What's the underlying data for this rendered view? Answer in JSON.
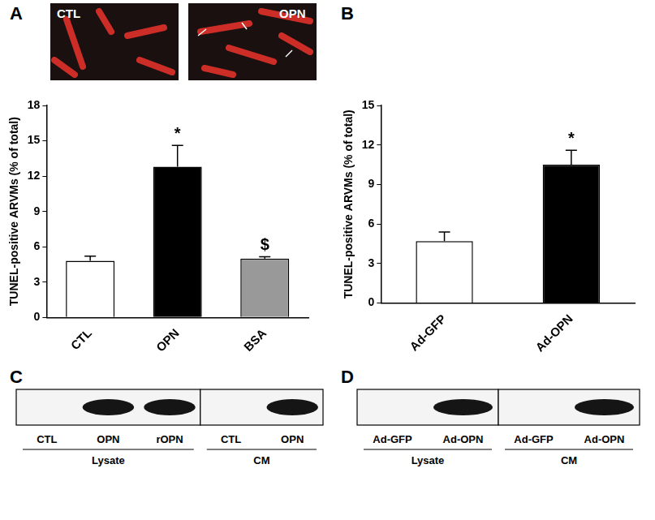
{
  "chart_data": [
    {
      "panel": "A",
      "type": "bar",
      "categories": [
        "CTL",
        "OPN",
        "BSA"
      ],
      "values": [
        4.8,
        12.8,
        5.0
      ],
      "errors": [
        0.4,
        1.8,
        0.15
      ],
      "colors": [
        "#ffffff",
        "#000000",
        "#999999"
      ],
      "y_label": "TUNEL-positive ARVMs (% of total)",
      "ylim": [
        0,
        18
      ],
      "yticks": [
        0,
        3,
        6,
        9,
        12,
        15,
        18
      ],
      "grid": false,
      "annotations": [
        {
          "category": "OPN",
          "text": "*"
        },
        {
          "category": "BSA",
          "text": "$"
        }
      ]
    },
    {
      "panel": "B",
      "type": "bar",
      "categories": [
        "Ad-GFP",
        "Ad-OPN"
      ],
      "values": [
        4.7,
        10.5
      ],
      "errors": [
        0.7,
        1.1
      ],
      "colors": [
        "#ffffff",
        "#000000"
      ],
      "y_label": "TUNEL-positive ARVMs (% of total)",
      "ylim": [
        0,
        15
      ],
      "yticks": [
        0,
        3,
        6,
        9,
        12,
        15
      ],
      "grid": false,
      "annotations": [
        {
          "category": "Ad-OPN",
          "text": "*"
        }
      ]
    }
  ],
  "images": {
    "panel": "A",
    "items": [
      {
        "label": "CTL"
      },
      {
        "label": "OPN"
      }
    ]
  },
  "blots": [
    {
      "panel": "C",
      "groups": [
        {
          "label": "Lysate",
          "lanes": [
            {
              "label": "CTL",
              "band": false
            },
            {
              "label": "OPN",
              "band": true
            },
            {
              "label": "rOPN",
              "band": true
            }
          ]
        },
        {
          "label": "CM",
          "lanes": [
            {
              "label": "CTL",
              "band": false
            },
            {
              "label": "OPN",
              "band": true
            }
          ]
        }
      ]
    },
    {
      "panel": "D",
      "groups": [
        {
          "label": "Lysate",
          "lanes": [
            {
              "label": "Ad-GFP",
              "band": false
            },
            {
              "label": "Ad-OPN",
              "band": true
            }
          ]
        },
        {
          "label": "CM",
          "lanes": [
            {
              "label": "Ad-GFP",
              "band": false
            },
            {
              "label": "Ad-OPN",
              "band": true
            }
          ]
        }
      ]
    }
  ]
}
